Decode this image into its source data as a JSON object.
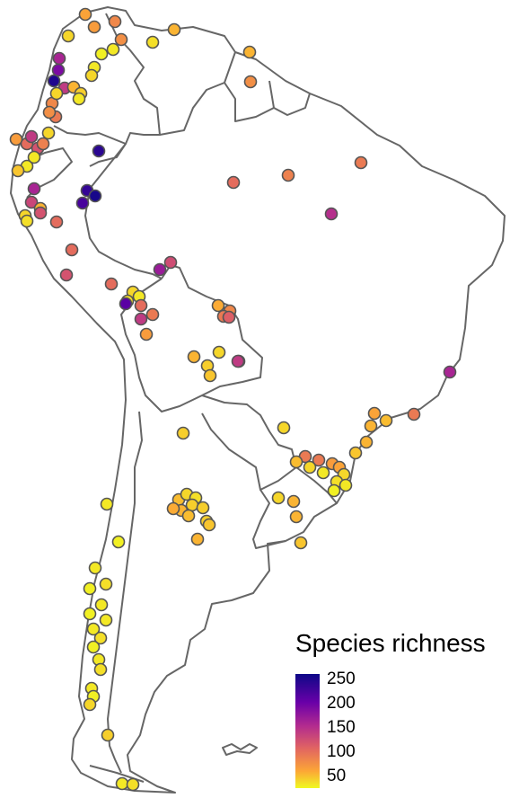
{
  "legend": {
    "title": "Species richness",
    "ticks": [
      "250",
      "200",
      "150",
      "100",
      "50"
    ],
    "scale_min": 20,
    "scale_max": 260,
    "colors": [
      "#f0f921",
      "#fca636",
      "#e16462",
      "#b12a90",
      "#6a00a8",
      "#0d0887"
    ]
  },
  "sites": [
    {
      "r": 70
    },
    {
      "r": 75
    },
    {
      "r": 90
    },
    {
      "r": 40
    },
    {
      "r": 35
    },
    {
      "r": 60
    },
    {
      "r": 85
    },
    {
      "r": 30
    },
    {
      "r": 25
    },
    {
      "r": 30
    },
    {
      "r": 40
    },
    {
      "r": 170
    },
    {
      "r": 200
    },
    {
      "r": 250
    },
    {
      "r": 150
    },
    {
      "r": 60
    },
    {
      "r": 45
    },
    {
      "r": 30
    },
    {
      "r": 90
    },
    {
      "r": 100
    },
    {
      "r": 85
    },
    {
      "r": 40
    },
    {
      "r": 75
    },
    {
      "r": 110
    },
    {
      "r": 130
    },
    {
      "r": 150
    },
    {
      "r": 95
    },
    {
      "r": 40
    },
    {
      "r": 30
    },
    {
      "r": 50
    },
    {
      "r": 30
    },
    {
      "r": 245
    },
    {
      "r": 240
    },
    {
      "r": 255
    },
    {
      "r": 230
    },
    {
      "r": 170
    },
    {
      "r": 140
    },
    {
      "r": 40
    },
    {
      "r": 60
    },
    {
      "r": 35
    },
    {
      "r": 130
    },
    {
      "r": 110
    },
    {
      "r": 110
    },
    {
      "r": 100
    },
    {
      "r": 95
    },
    {
      "r": 85
    },
    {
      "r": 60
    },
    {
      "r": 110
    },
    {
      "r": 160
    },
    {
      "r": 180
    },
    {
      "r": 135
    },
    {
      "r": 130
    },
    {
      "r": 40
    },
    {
      "r": 30
    },
    {
      "r": 35
    },
    {
      "r": 220
    },
    {
      "r": 110
    },
    {
      "r": 110
    },
    {
      "r": 100
    },
    {
      "r": 150
    },
    {
      "r": 75
    },
    {
      "r": 65
    },
    {
      "r": 90
    },
    {
      "r": 100
    },
    {
      "r": 120
    },
    {
      "r": 170
    },
    {
      "r": 100
    },
    {
      "r": 70
    },
    {
      "r": 60
    },
    {
      "r": 55
    },
    {
      "r": 50
    },
    {
      "r": 60
    },
    {
      "r": 40
    },
    {
      "r": 45
    },
    {
      "r": 40
    },
    {
      "r": 60
    },
    {
      "r": 45
    },
    {
      "r": 50
    },
    {
      "r": 230
    },
    {
      "r": 150
    },
    {
      "r": 100
    },
    {
      "r": 100
    },
    {
      "r": 75
    },
    {
      "r": 70
    },
    {
      "r": 40
    },
    {
      "r": 35
    },
    {
      "r": 30
    },
    {
      "r": 25
    },
    {
      "r": 30
    },
    {
      "r": 40
    },
    {
      "r": 55
    },
    {
      "r": 60
    },
    {
      "r": 60
    },
    {
      "r": 40
    },
    {
      "r": 50
    },
    {
      "r": 55
    },
    {
      "r": 40
    },
    {
      "r": 35
    },
    {
      "r": 45
    },
    {
      "r": 60
    },
    {
      "r": 65
    },
    {
      "r": 55
    },
    {
      "r": 45
    },
    {
      "r": 50
    },
    {
      "r": 60
    },
    {
      "r": 45
    },
    {
      "r": 30
    },
    {
      "r": 25
    },
    {
      "r": 30
    },
    {
      "r": 35
    },
    {
      "r": 25
    },
    {
      "r": 30
    },
    {
      "r": 25
    },
    {
      "r": 30
    },
    {
      "r": 30
    },
    {
      "r": 35
    },
    {
      "r": 25
    },
    {
      "r": 30
    },
    {
      "r": 35
    },
    {
      "r": 30
    },
    {
      "r": 25
    },
    {
      "r": 40
    },
    {
      "r": 45
    },
    {
      "r": 30
    },
    {
      "r": 35
    }
  ]
}
